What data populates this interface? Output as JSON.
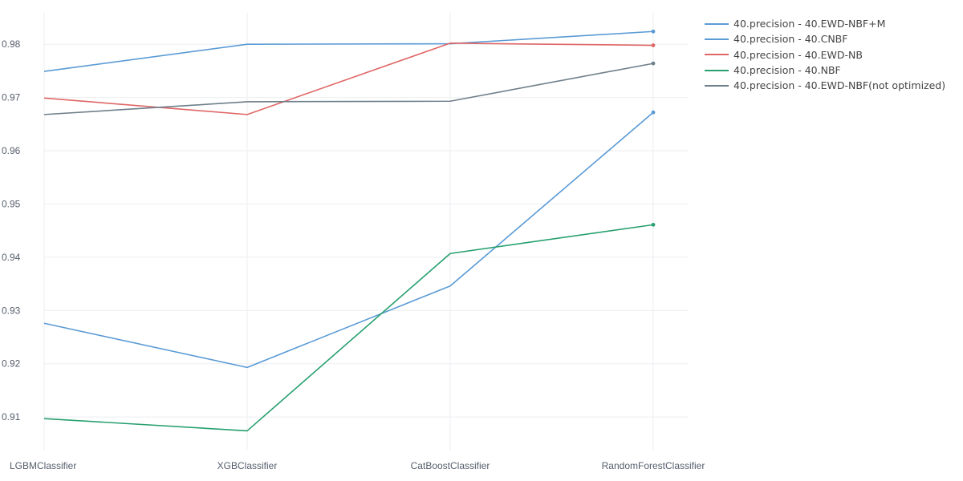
{
  "chart_data": {
    "type": "line",
    "categories": [
      "LGBMClassifier",
      "XGBClassifier",
      "CatBoostClassifier",
      "RandomForestClassifier"
    ],
    "yticks": [
      "0.91",
      "0.92",
      "0.93",
      "0.94",
      "0.95",
      "0.96",
      "0.97",
      "0.98"
    ],
    "ylim": [
      0.9037,
      0.9859
    ],
    "grid": true,
    "legend_position": "top-right",
    "series": [
      {
        "name": "40.precision - 40.EWD-NBF+M",
        "color": "#5b9bd5",
        "values": [
          0.9749,
          0.98,
          0.9801,
          0.9824
        ]
      },
      {
        "name": "40.precision - 40.CNBF",
        "color": "#5b9bd5",
        "values": [
          0.9276,
          0.9193,
          0.9346,
          0.9672
        ]
      },
      {
        "name": "40.precision - 40.EWD-NB",
        "color": "#e06666",
        "values": [
          0.9699,
          0.9668,
          0.9802,
          0.9798
        ]
      },
      {
        "name": "40.precision - 40.NBF",
        "color": "#27a06f",
        "values": [
          0.9097,
          0.9074,
          0.9407,
          0.9461
        ]
      },
      {
        "name": "40.precision - 40.EWD-NBF(not optimized)",
        "color": "#6e7f8a",
        "values": [
          0.9668,
          0.9692,
          0.9693,
          0.9764
        ]
      }
    ]
  }
}
